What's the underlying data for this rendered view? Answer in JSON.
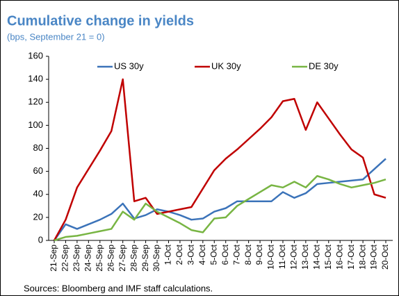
{
  "chart_data": {
    "type": "line",
    "title": "Cumulative change in yields",
    "subtitle": "(bps, September 21 = 0)",
    "source": "Sources: Bloomberg and IMF staff calculations.",
    "categories": [
      "21-Sep",
      "22-Sep",
      "23-Sep",
      "24-Sep",
      "25-Sep",
      "26-Sep",
      "27-Sep",
      "28-Sep",
      "29-Sep",
      "30-Sep",
      "1-Oct",
      "2-Oct",
      "3-Oct",
      "4-Oct",
      "5-Oct",
      "6-Oct",
      "7-Oct",
      "8-Oct",
      "9-Oct",
      "10-Oct",
      "11-Oct",
      "12-Oct",
      "13-Oct",
      "14-Oct",
      "15-Oct",
      "16-Oct",
      "17-Oct",
      "18-Oct",
      "19-Oct",
      "20-Oct"
    ],
    "series": [
      {
        "name": "US 30y",
        "color": "#3b73b9",
        "values": [
          0,
          14,
          10,
          14,
          18,
          23,
          32,
          19,
          22,
          27,
          25,
          22,
          18,
          19,
          25,
          28,
          34,
          34,
          34,
          34,
          42,
          37,
          41,
          49,
          50,
          51,
          52,
          53,
          62,
          71
        ]
      },
      {
        "name": "UK 30y",
        "color": "#c00000",
        "values": [
          0,
          18,
          46,
          62,
          78,
          95,
          140,
          34,
          37,
          23,
          25,
          27,
          29,
          45,
          61,
          71,
          79,
          88,
          97,
          107,
          121,
          123,
          96,
          120,
          106,
          92,
          79,
          72,
          40,
          37
        ]
      },
      {
        "name": "DE 30y",
        "color": "#78b543",
        "values": [
          0,
          3,
          4,
          6,
          8,
          10,
          25,
          18,
          32,
          25,
          20,
          15,
          9,
          7,
          19,
          20,
          30,
          36,
          42,
          48,
          46,
          51,
          46,
          56,
          53,
          49,
          46,
          48,
          50,
          53
        ]
      }
    ],
    "ylim": [
      0,
      160
    ],
    "yticks": [
      0,
      20,
      40,
      60,
      80,
      100,
      120,
      140,
      160
    ],
    "legend": "top",
    "grid": false
  }
}
